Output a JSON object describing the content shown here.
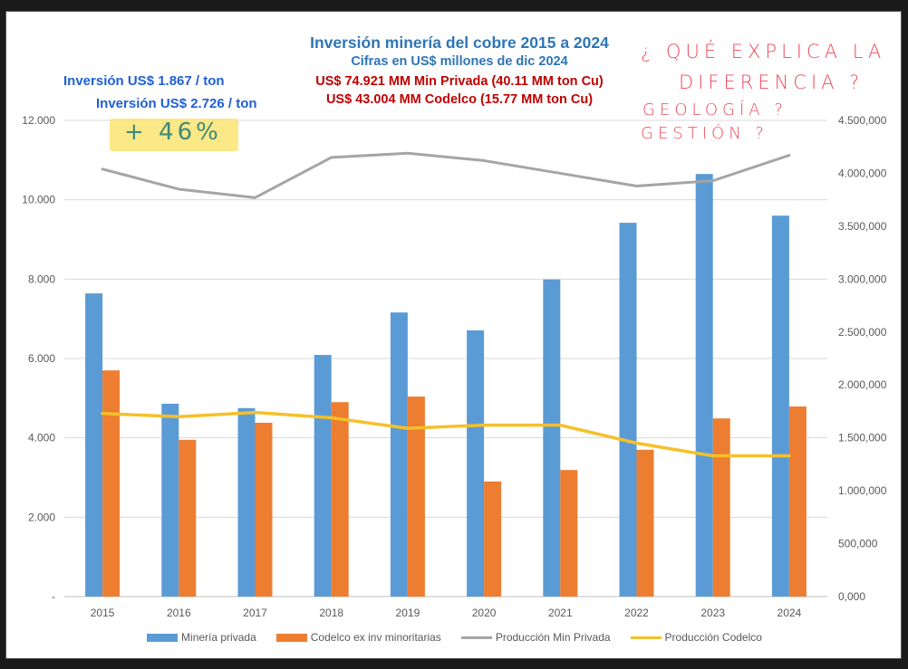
{
  "colors": {
    "mineria_privada": "#5b9bd5",
    "codelco": "#ed7d31",
    "prod_min_privada": "#a5a5a5",
    "prod_codelco": "#f5c02a",
    "title_blue": "#2e75b6",
    "title_red": "#c00000",
    "annotation_blue": "#1f5fd6",
    "handwriting_red": "#ef4a5a",
    "handwriting_green": "#3f8a7a",
    "highlight_yellow": "#fbe67a"
  },
  "annotations": {
    "inversion_privada": "Inversión US$ 1.867 / ton",
    "inversion_codelco": "Inversión US$ 2.726 / ton",
    "highlight": "+ 46%",
    "handwritten": [
      "¿ QUÉ EXPLICA LA",
      "DIFERENCIA ?",
      "GEOLOGÍA ?",
      "GESTIÓN ?"
    ]
  },
  "chart_data": {
    "type": "bar",
    "title": "Inversión minería del cobre 2015 a 2024",
    "subtitle": "Cifras en US$ millones de dic 2024",
    "subtitle_lines": [
      "US$ 74.921 MM Min Privada (40.11 MM ton Cu)",
      "US$ 43.004 MM Codelco  (15.77 MM ton Cu)"
    ],
    "xlabel": "",
    "ylabel": "",
    "categories": [
      "2015",
      "2016",
      "2017",
      "2018",
      "2019",
      "2020",
      "2021",
      "2022",
      "2023",
      "2024"
    ],
    "ylim": [
      0,
      12000
    ],
    "y2lim": [
      0,
      4500000
    ],
    "y_ticks": [
      0,
      2000,
      4000,
      6000,
      8000,
      10000,
      12000
    ],
    "y_tick_labels": [
      "-",
      "2.000",
      "4.000",
      "6.000",
      "8.000",
      "10.000",
      "12.000"
    ],
    "y2_ticks": [
      0,
      500000,
      1000000,
      1500000,
      2000000,
      2500000,
      3000000,
      3500000,
      4000000,
      4500000
    ],
    "y2_tick_labels": [
      "0,000",
      "500,000",
      "1.000,000",
      "1.500,000",
      "2.000,000",
      "2.500,000",
      "3.000,000",
      "3.500,000",
      "4.000,000",
      "4.500,000"
    ],
    "grid": true,
    "legend_position": "bottom",
    "series": [
      {
        "name": "Minería privada",
        "kind": "bar",
        "axis": "left",
        "values": [
          7640,
          4860,
          4750,
          6090,
          7160,
          6710,
          7990,
          9420,
          10650,
          9600
        ]
      },
      {
        "name": "Codelco ex inv minoritarias",
        "kind": "bar",
        "axis": "left",
        "values": [
          5700,
          3950,
          4380,
          4900,
          5040,
          2900,
          3190,
          3700,
          4490,
          4790
        ]
      },
      {
        "name": "Producción Min Privada",
        "kind": "line",
        "axis": "right",
        "values": [
          4040000,
          3850000,
          3770000,
          4150000,
          4190000,
          4120000,
          4000000,
          3880000,
          3930000,
          4170000
        ]
      },
      {
        "name": "Producción Codelco",
        "kind": "line",
        "axis": "right",
        "values": [
          1730000,
          1700000,
          1740000,
          1690000,
          1590000,
          1620000,
          1620000,
          1450000,
          1330000,
          1330000
        ]
      }
    ]
  }
}
